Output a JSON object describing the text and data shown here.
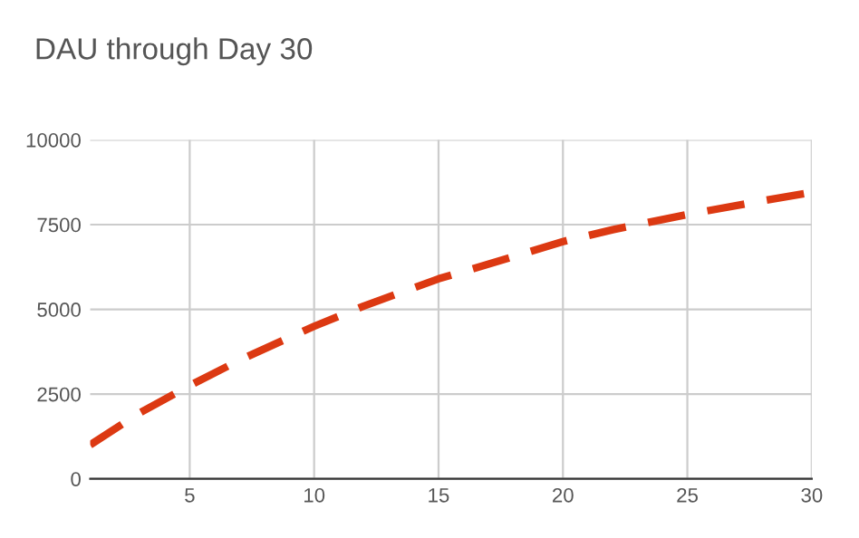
{
  "chart_data": {
    "type": "line",
    "title": "DAU through Day 30",
    "x": [
      1,
      3,
      5,
      7,
      10,
      12,
      15,
      18,
      20,
      22,
      25,
      28,
      30
    ],
    "series": [
      {
        "color": "#dc3912",
        "values": [
          1000,
          1950,
          2750,
          3500,
          4500,
          5100,
          5900,
          6550,
          7000,
          7350,
          7800,
          8200,
          8450
        ]
      }
    ],
    "xlim": [
      1,
      30
    ],
    "xticks": [
      5,
      10,
      15,
      20,
      25,
      30
    ],
    "ylim": [
      0,
      10000
    ],
    "yticks": [
      0,
      2500,
      5000,
      7500,
      10000
    ],
    "grid": true,
    "line_style": "dashed",
    "marker": "none",
    "legend": false
  }
}
